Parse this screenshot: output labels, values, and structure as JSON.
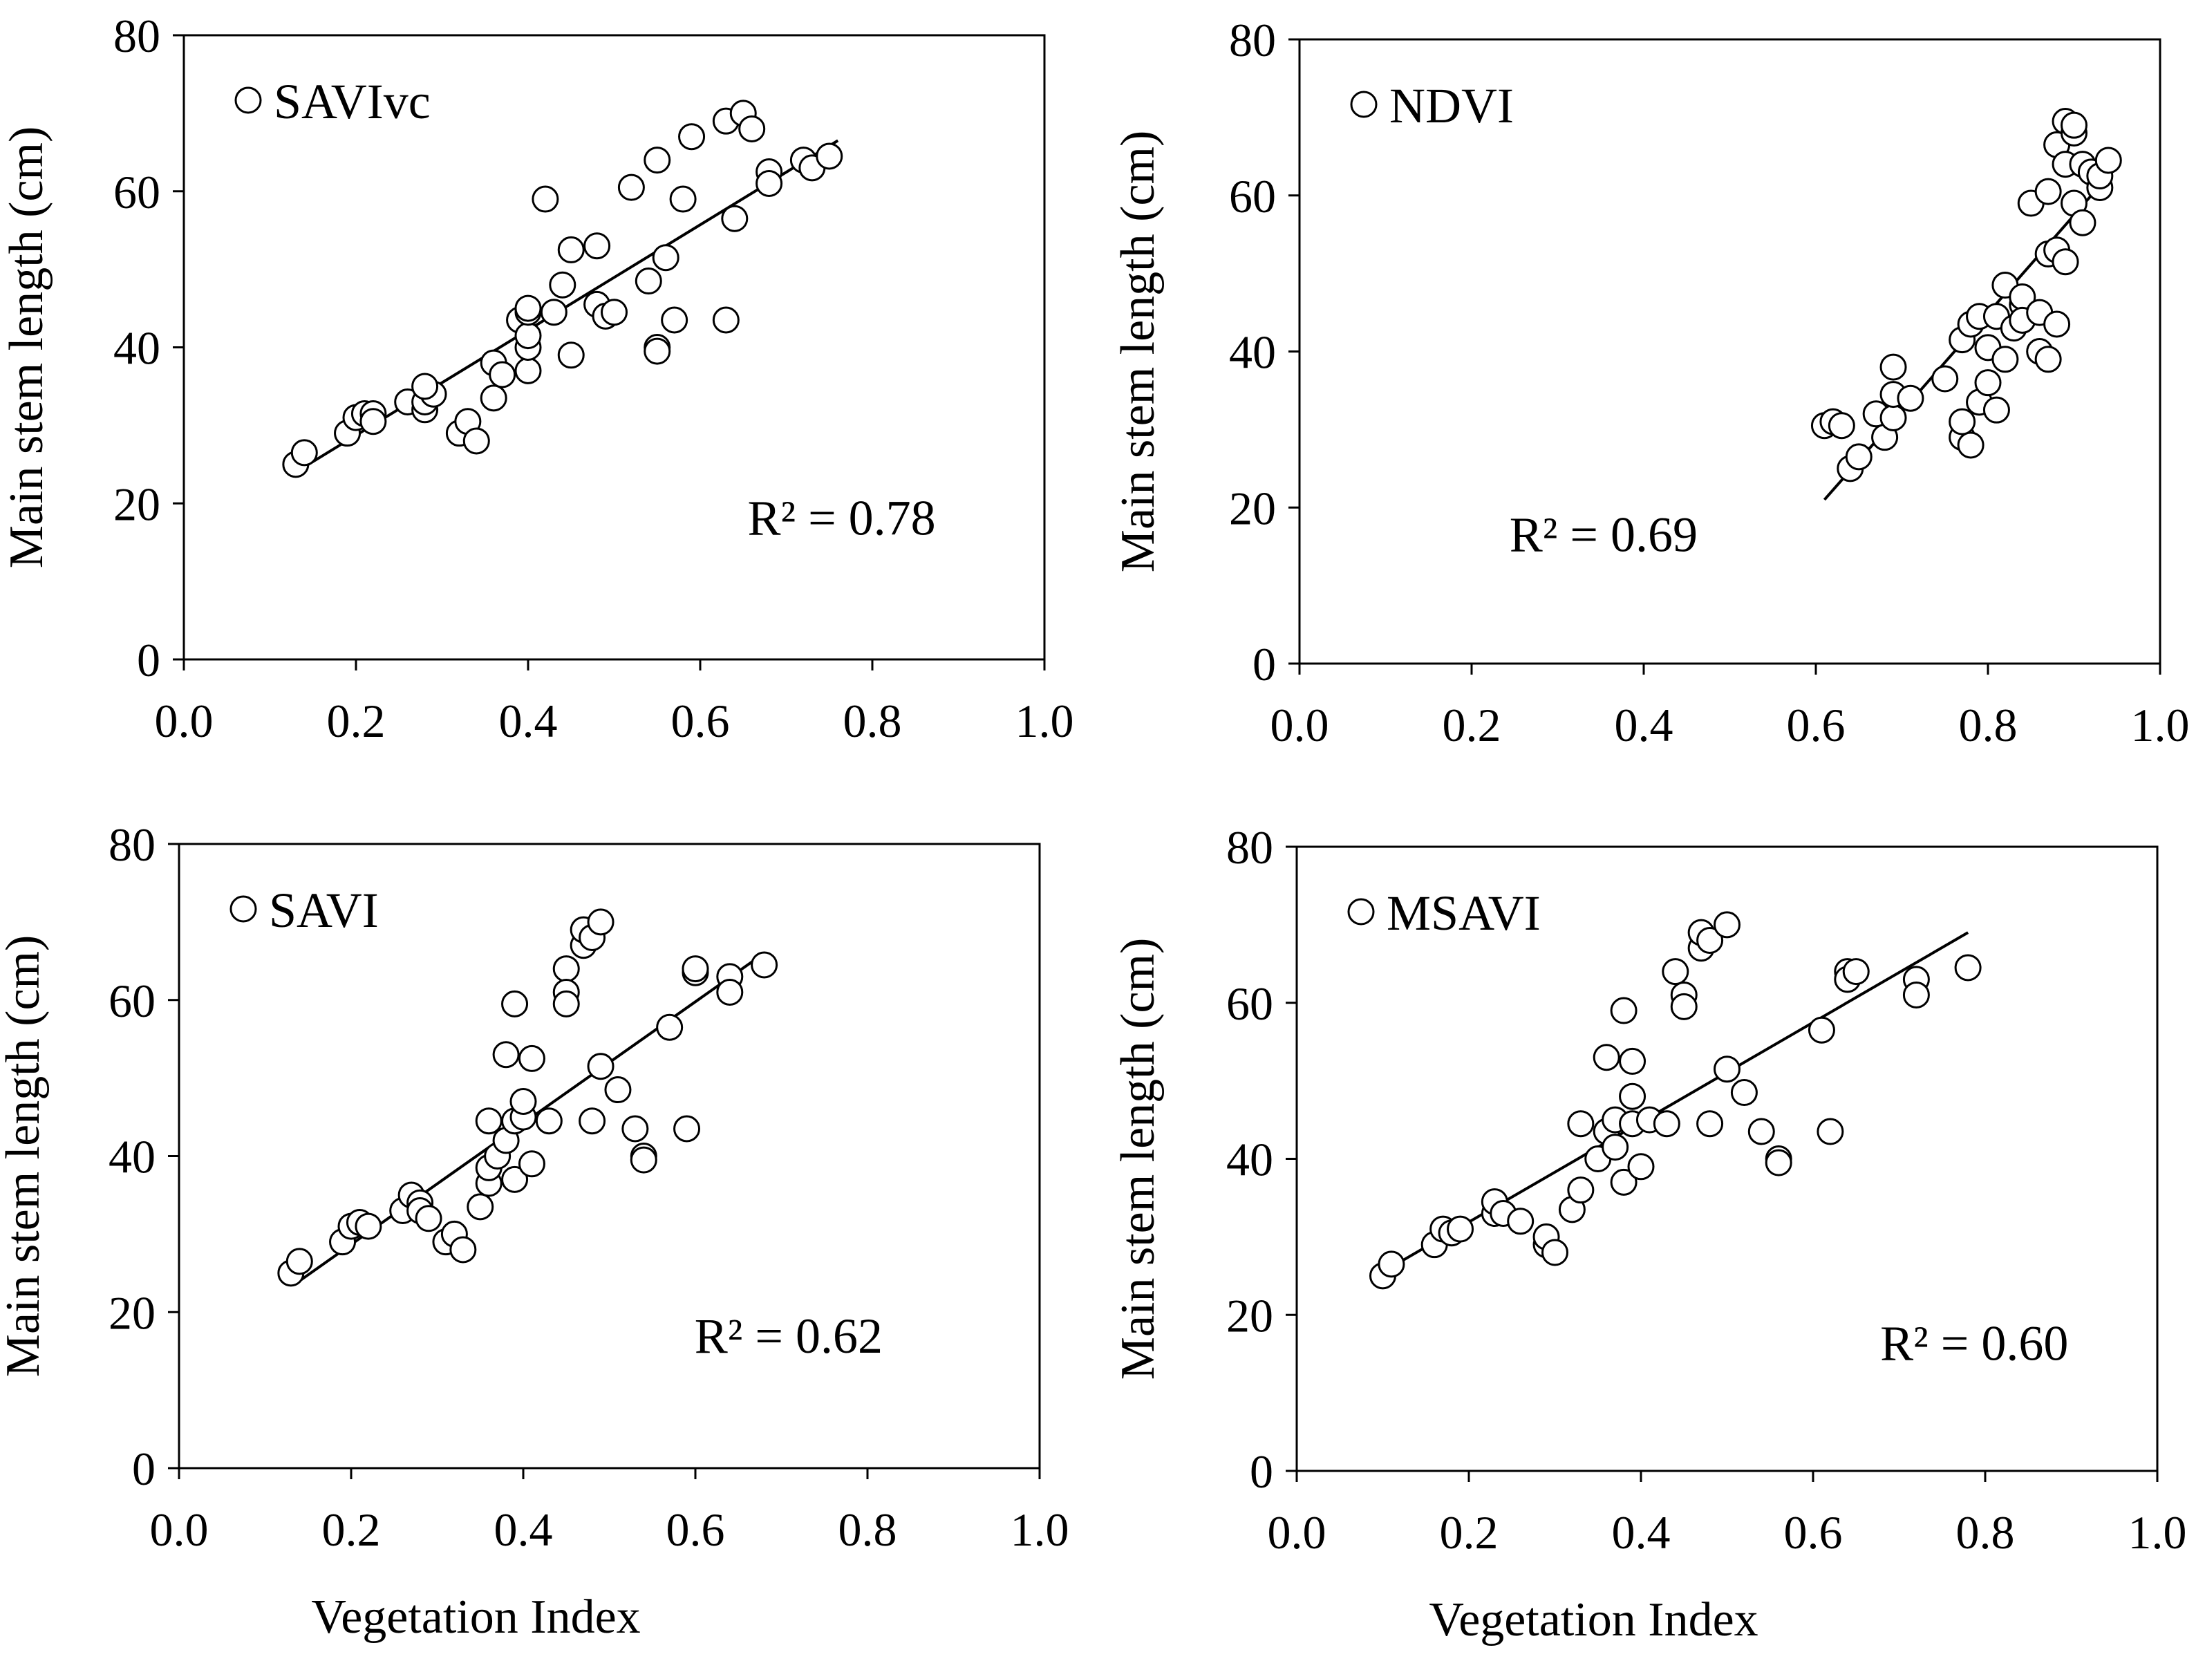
{
  "figure": {
    "x_title": "Vegetation Index",
    "y_title": "Main stem length (cm)"
  },
  "colors": {
    "axis": "#000000",
    "marker_edge": "#000000",
    "marker_fill": "#ffffff",
    "trendline": "#000000",
    "background": "#ffffff"
  },
  "chart_data": [
    {
      "type": "scatter",
      "title": "",
      "legend": "SAVIvc",
      "legend_position": "top-left",
      "r2_label": "R² = 0.78",
      "xlabel": "",
      "ylabel": "Main stem length (cm)",
      "xlim": [
        0,
        1
      ],
      "ylim": [
        0,
        80
      ],
      "x_ticks": [
        "0.0",
        "0.2",
        "0.4",
        "0.6",
        "0.8",
        "1.0"
      ],
      "y_ticks": [
        "0",
        "20",
        "40",
        "60",
        "80"
      ],
      "trendline": {
        "x": [
          0.13,
          0.76
        ],
        "y": [
          24.0,
          66.5
        ]
      },
      "points": [
        [
          0.13,
          25.0
        ],
        [
          0.14,
          26.5
        ],
        [
          0.19,
          29.0
        ],
        [
          0.2,
          31.0
        ],
        [
          0.21,
          31.5
        ],
        [
          0.22,
          31.5
        ],
        [
          0.22,
          30.5
        ],
        [
          0.26,
          33.0
        ],
        [
          0.28,
          32.0
        ],
        [
          0.28,
          33.0
        ],
        [
          0.29,
          34.0
        ],
        [
          0.28,
          35.0
        ],
        [
          0.32,
          29.0
        ],
        [
          0.33,
          30.5
        ],
        [
          0.34,
          28.0
        ],
        [
          0.36,
          33.5
        ],
        [
          0.36,
          38.0
        ],
        [
          0.37,
          36.5
        ],
        [
          0.39,
          43.5
        ],
        [
          0.4,
          37.0
        ],
        [
          0.4,
          40.0
        ],
        [
          0.4,
          41.5
        ],
        [
          0.4,
          44.5
        ],
        [
          0.4,
          45.0
        ],
        [
          0.42,
          59.0
        ],
        [
          0.43,
          44.5
        ],
        [
          0.44,
          48.0
        ],
        [
          0.45,
          52.5
        ],
        [
          0.45,
          39.0
        ],
        [
          0.48,
          53.0
        ],
        [
          0.48,
          45.5
        ],
        [
          0.49,
          44.0
        ],
        [
          0.5,
          44.5
        ],
        [
          0.52,
          60.5
        ],
        [
          0.54,
          48.5
        ],
        [
          0.55,
          64.0
        ],
        [
          0.55,
          40.0
        ],
        [
          0.55,
          39.5
        ],
        [
          0.56,
          51.5
        ],
        [
          0.57,
          43.5
        ],
        [
          0.58,
          59.0
        ],
        [
          0.59,
          67.0
        ],
        [
          0.63,
          43.5
        ],
        [
          0.63,
          69.0
        ],
        [
          0.64,
          56.5
        ],
        [
          0.65,
          70.0
        ],
        [
          0.66,
          68.0
        ],
        [
          0.68,
          62.5
        ],
        [
          0.68,
          61.0
        ],
        [
          0.72,
          64.0
        ],
        [
          0.73,
          63.0
        ],
        [
          0.75,
          64.5
        ]
      ]
    },
    {
      "type": "scatter",
      "title": "",
      "legend": "NDVI",
      "legend_position": "top-left",
      "r2_label": "R² = 0.69",
      "xlabel": "",
      "ylabel": "Main stem length (cm)",
      "xlim": [
        0,
        1
      ],
      "ylim": [
        0,
        80
      ],
      "x_ticks": [
        "0.0",
        "0.2",
        "0.4",
        "0.6",
        "0.8",
        "1.0"
      ],
      "y_ticks": [
        "0",
        "20",
        "40",
        "60",
        "80"
      ],
      "trendline": {
        "x": [
          0.61,
          0.94
        ],
        "y": [
          21.0,
          62.5
        ]
      },
      "points": [
        [
          0.61,
          30.5
        ],
        [
          0.62,
          31.0
        ],
        [
          0.63,
          30.5
        ],
        [
          0.64,
          25.0
        ],
        [
          0.65,
          26.5
        ],
        [
          0.67,
          32.0
        ],
        [
          0.68,
          29.0
        ],
        [
          0.69,
          31.5
        ],
        [
          0.69,
          34.5
        ],
        [
          0.69,
          38.0
        ],
        [
          0.71,
          34.0
        ],
        [
          0.75,
          36.5
        ],
        [
          0.77,
          41.5
        ],
        [
          0.77,
          29.0
        ],
        [
          0.77,
          31.0
        ],
        [
          0.78,
          43.5
        ],
        [
          0.78,
          28.0
        ],
        [
          0.79,
          44.5
        ],
        [
          0.79,
          33.5
        ],
        [
          0.8,
          36.0
        ],
        [
          0.8,
          40.5
        ],
        [
          0.81,
          44.5
        ],
        [
          0.81,
          32.5
        ],
        [
          0.82,
          39.0
        ],
        [
          0.82,
          48.5
        ],
        [
          0.83,
          43.0
        ],
        [
          0.84,
          46.0
        ],
        [
          0.84,
          47.0
        ],
        [
          0.84,
          44.0
        ],
        [
          0.85,
          59.0
        ],
        [
          0.86,
          45.0
        ],
        [
          0.86,
          40.0
        ],
        [
          0.87,
          39.0
        ],
        [
          0.87,
          52.5
        ],
        [
          0.87,
          60.5
        ],
        [
          0.88,
          43.5
        ],
        [
          0.88,
          66.5
        ],
        [
          0.88,
          53.0
        ],
        [
          0.89,
          51.5
        ],
        [
          0.89,
          64.0
        ],
        [
          0.89,
          69.5
        ],
        [
          0.9,
          59.0
        ],
        [
          0.9,
          68.0
        ],
        [
          0.9,
          69.0
        ],
        [
          0.91,
          56.5
        ],
        [
          0.91,
          64.0
        ],
        [
          0.92,
          63.0
        ],
        [
          0.93,
          61.0
        ],
        [
          0.93,
          62.5
        ],
        [
          0.94,
          64.5
        ]
      ]
    },
    {
      "type": "scatter",
      "title": "",
      "legend": "SAVI",
      "legend_position": "top-left",
      "r2_label": "R² = 0.62",
      "xlabel": "Vegetation Index",
      "ylabel": "Main stem length (cm)",
      "xlim": [
        0,
        1
      ],
      "ylim": [
        0,
        80
      ],
      "x_ticks": [
        "0.0",
        "0.2",
        "0.4",
        "0.6",
        "0.8",
        "1.0"
      ],
      "y_ticks": [
        "0",
        "20",
        "40",
        "60",
        "80"
      ],
      "trendline": {
        "x": [
          0.14,
          0.68
        ],
        "y": [
          24.0,
          66.0
        ]
      },
      "points": [
        [
          0.13,
          25.0
        ],
        [
          0.14,
          26.5
        ],
        [
          0.19,
          29.0
        ],
        [
          0.2,
          31.0
        ],
        [
          0.21,
          31.5
        ],
        [
          0.22,
          31.0
        ],
        [
          0.26,
          33.0
        ],
        [
          0.27,
          35.0
        ],
        [
          0.28,
          34.0
        ],
        [
          0.28,
          33.0
        ],
        [
          0.29,
          32.0
        ],
        [
          0.31,
          29.0
        ],
        [
          0.32,
          30.0
        ],
        [
          0.33,
          28.0
        ],
        [
          0.35,
          33.5
        ],
        [
          0.36,
          36.5
        ],
        [
          0.36,
          38.5
        ],
        [
          0.36,
          44.5
        ],
        [
          0.37,
          40.0
        ],
        [
          0.38,
          42.0
        ],
        [
          0.38,
          53.0
        ],
        [
          0.39,
          44.5
        ],
        [
          0.39,
          37.0
        ],
        [
          0.39,
          59.5
        ],
        [
          0.4,
          45.0
        ],
        [
          0.4,
          47.0
        ],
        [
          0.41,
          52.5
        ],
        [
          0.41,
          39.0
        ],
        [
          0.43,
          44.5
        ],
        [
          0.45,
          64.0
        ],
        [
          0.45,
          61.0
        ],
        [
          0.45,
          59.5
        ],
        [
          0.47,
          67.0
        ],
        [
          0.47,
          69.0
        ],
        [
          0.48,
          68.0
        ],
        [
          0.48,
          44.5
        ],
        [
          0.49,
          70.0
        ],
        [
          0.49,
          51.5
        ],
        [
          0.51,
          48.5
        ],
        [
          0.53,
          43.5
        ],
        [
          0.54,
          40.0
        ],
        [
          0.54,
          39.5
        ],
        [
          0.57,
          56.5
        ],
        [
          0.59,
          43.5
        ],
        [
          0.6,
          63.5
        ],
        [
          0.6,
          64.0
        ],
        [
          0.64,
          63.0
        ],
        [
          0.64,
          61.0
        ],
        [
          0.68,
          64.5
        ]
      ]
    },
    {
      "type": "scatter",
      "title": "",
      "legend": "MSAVI",
      "legend_position": "top-left",
      "r2_label": "R² = 0.60",
      "xlabel": "Vegetation Index",
      "ylabel": "Main stem length (cm)",
      "xlim": [
        0,
        1
      ],
      "ylim": [
        0,
        80
      ],
      "x_ticks": [
        "0.0",
        "0.2",
        "0.4",
        "0.6",
        "0.8",
        "1.0"
      ],
      "y_ticks": [
        "0",
        "20",
        "40",
        "60",
        "80"
      ],
      "trendline": {
        "x": [
          0.1,
          0.78
        ],
        "y": [
          25.5,
          69.0
        ]
      },
      "points": [
        [
          0.1,
          25.0
        ],
        [
          0.11,
          26.5
        ],
        [
          0.16,
          29.0
        ],
        [
          0.17,
          31.0
        ],
        [
          0.18,
          30.5
        ],
        [
          0.19,
          31.0
        ],
        [
          0.23,
          33.0
        ],
        [
          0.23,
          34.5
        ],
        [
          0.24,
          33.0
        ],
        [
          0.26,
          32.0
        ],
        [
          0.29,
          29.0
        ],
        [
          0.29,
          30.0
        ],
        [
          0.3,
          28.0
        ],
        [
          0.32,
          33.5
        ],
        [
          0.33,
          36.0
        ],
        [
          0.33,
          44.5
        ],
        [
          0.35,
          40.0
        ],
        [
          0.36,
          43.5
        ],
        [
          0.36,
          53.0
        ],
        [
          0.37,
          41.5
        ],
        [
          0.37,
          45.0
        ],
        [
          0.38,
          37.0
        ],
        [
          0.38,
          59.0
        ],
        [
          0.39,
          44.5
        ],
        [
          0.39,
          48.0
        ],
        [
          0.39,
          52.5
        ],
        [
          0.4,
          39.0
        ],
        [
          0.41,
          45.0
        ],
        [
          0.43,
          44.5
        ],
        [
          0.44,
          64.0
        ],
        [
          0.45,
          61.0
        ],
        [
          0.45,
          59.5
        ],
        [
          0.47,
          67.0
        ],
        [
          0.47,
          69.0
        ],
        [
          0.48,
          68.0
        ],
        [
          0.48,
          44.5
        ],
        [
          0.5,
          70.0
        ],
        [
          0.5,
          51.5
        ],
        [
          0.52,
          48.5
        ],
        [
          0.54,
          43.5
        ],
        [
          0.56,
          40.0
        ],
        [
          0.56,
          39.5
        ],
        [
          0.61,
          56.5
        ],
        [
          0.62,
          43.5
        ],
        [
          0.64,
          64.0
        ],
        [
          0.64,
          63.0
        ],
        [
          0.65,
          64.0
        ],
        [
          0.72,
          63.0
        ],
        [
          0.72,
          61.0
        ],
        [
          0.78,
          64.5
        ]
      ]
    }
  ]
}
